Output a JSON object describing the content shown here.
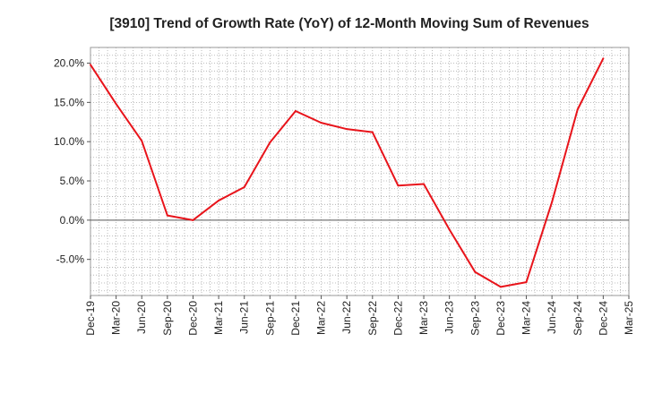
{
  "chart_data": {
    "type": "line",
    "title": "[3910]  Trend of Growth Rate (YoY) of 12-Month Moving Sum of Revenues",
    "xlabel": "",
    "ylabel": "",
    "x_ticks": [
      "Dec-19",
      "Mar-20",
      "Jun-20",
      "Sep-20",
      "Dec-20",
      "Mar-21",
      "Jun-21",
      "Sep-21",
      "Dec-21",
      "Mar-22",
      "Jun-22",
      "Sep-22",
      "Dec-22",
      "Mar-23",
      "Jun-23",
      "Sep-23",
      "Dec-23",
      "Mar-24",
      "Jun-24",
      "Sep-24",
      "Dec-24",
      "Mar-25"
    ],
    "y_ticks": [
      "20.0%",
      "15.0%",
      "10.0%",
      "5.0%",
      "0.0%",
      "-5.0%"
    ],
    "ylim": [
      -9.6,
      22
    ],
    "grid": true,
    "series_color": "#e8141b",
    "series": [
      {
        "x": [
          "Dec-19",
          "Mar-20",
          "Jun-20",
          "Sep-20",
          "Dec-20",
          "Mar-21",
          "Jun-21",
          "Sep-21",
          "Dec-21",
          "Mar-22",
          "Jun-22",
          "Sep-22",
          "Dec-22",
          "Mar-23",
          "Jun-23",
          "Sep-23",
          "Dec-23",
          "Mar-24",
          "Jun-24",
          "Sep-24",
          "Dec-24"
        ],
        "values": [
          19.8,
          14.8,
          10.1,
          0.6,
          0.0,
          2.5,
          4.2,
          9.9,
          13.9,
          12.4,
          11.6,
          11.2,
          4.4,
          4.6,
          -1.2,
          -6.6,
          -8.5,
          -7.9,
          2.3,
          14.1,
          20.6
        ]
      }
    ]
  }
}
